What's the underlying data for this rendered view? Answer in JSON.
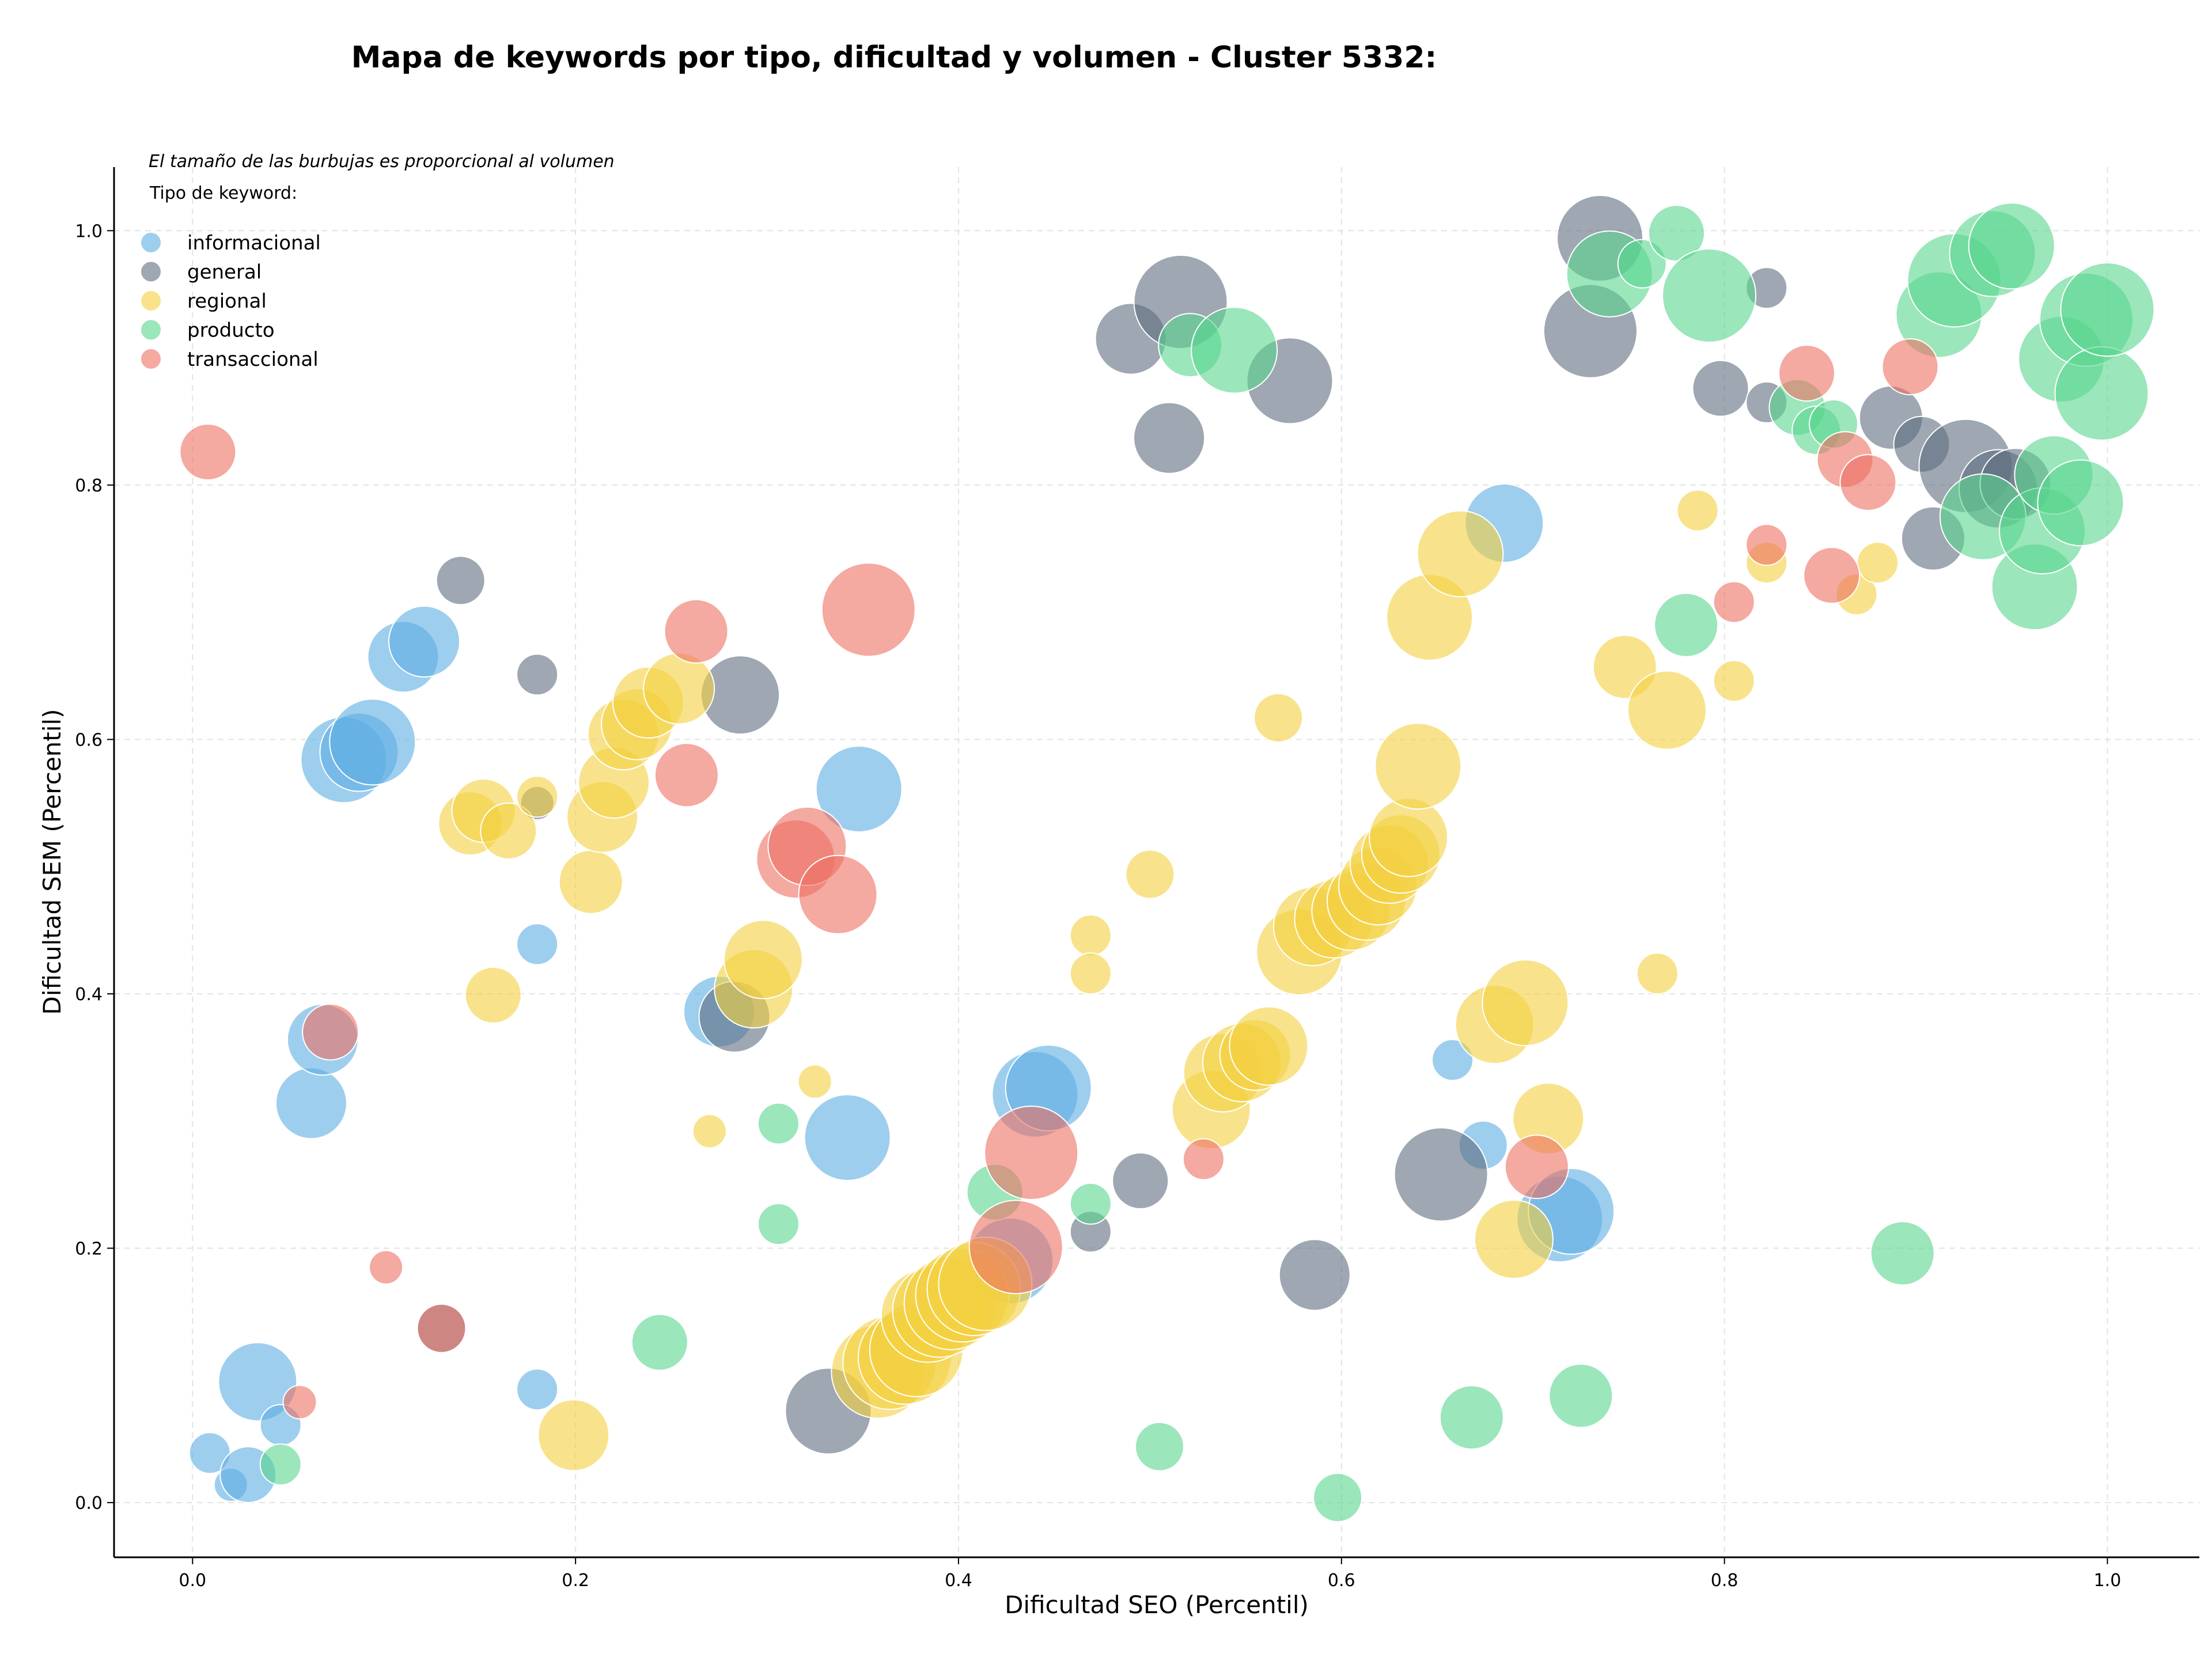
{
  "chart_data": {
    "type": "scatter",
    "title": "Mapa de keywords por tipo, dificultad y volumen - Cluster 5332:",
    "xlabel": "Dificultad SEO (Percentil)",
    "ylabel": "Dificultad SEM (Percentil)",
    "note": "El tamaño de las burbujas es proporcional al volumen",
    "legend_title": "Tipo de keyword:",
    "legend_position": "top-left",
    "grid": true,
    "xlim": [
      -0.041,
      1.048
    ],
    "ylim": [
      -0.043,
      1.05
    ],
    "xticks": [
      "0.0",
      "0.2",
      "0.4",
      "0.6",
      "0.8",
      "1.0"
    ],
    "yticks": [
      "0.0",
      "0.2",
      "0.4",
      "0.6",
      "0.8",
      "1.0"
    ],
    "series": [
      {
        "name": "informacional",
        "color": "#5DADE2",
        "points": [
          [
            0.009,
            0.039,
            3
          ],
          [
            0.02,
            0.014,
            2
          ],
          [
            0.029,
            0.022,
            5
          ],
          [
            0.034,
            0.095,
            8
          ],
          [
            0.046,
            0.061,
            3
          ],
          [
            0.062,
            0.314,
            7
          ],
          [
            0.068,
            0.364,
            7
          ],
          [
            0.079,
            0.584,
            9
          ],
          [
            0.087,
            0.59,
            8
          ],
          [
            0.094,
            0.598,
            9
          ],
          [
            0.11,
            0.665,
            7
          ],
          [
            0.121,
            0.677,
            7
          ],
          [
            0.18,
            0.439,
            3
          ],
          [
            0.18,
            0.089,
            3
          ],
          [
            0.275,
            0.386,
            7
          ],
          [
            0.342,
            0.287,
            9
          ],
          [
            0.348,
            0.561,
            9
          ],
          [
            0.427,
            0.19,
            9
          ],
          [
            0.44,
            0.321,
            9
          ],
          [
            0.447,
            0.326,
            9
          ],
          [
            0.658,
            0.348,
            3
          ],
          [
            0.674,
            0.281,
            4
          ],
          [
            0.685,
            0.77,
            8
          ],
          [
            0.714,
            0.223,
            9
          ],
          [
            0.72,
            0.229,
            9
          ]
        ]
      },
      {
        "name": "general",
        "color": "#5D6D7E",
        "points": [
          [
            0.14,
            0.725,
            4
          ],
          [
            0.13,
            0.137,
            4
          ],
          [
            0.18,
            0.651,
            3
          ],
          [
            0.18,
            0.55,
            2
          ],
          [
            0.283,
            0.382,
            7
          ],
          [
            0.286,
            0.635,
            8
          ],
          [
            0.332,
            0.072,
            9
          ],
          [
            0.469,
            0.213,
            3
          ],
          [
            0.495,
            0.253,
            5
          ],
          [
            0.49,
            0.915,
            7
          ],
          [
            0.51,
            0.837,
            7
          ],
          [
            0.516,
            0.944,
            10
          ],
          [
            0.573,
            0.882,
            9
          ],
          [
            0.586,
            0.179,
            7
          ],
          [
            0.652,
            0.258,
            10
          ],
          [
            0.73,
            0.921,
            10
          ],
          [
            0.735,
            0.994,
            9
          ],
          [
            0.798,
            0.876,
            5
          ],
          [
            0.822,
            0.955,
            3
          ],
          [
            0.822,
            0.865,
            3
          ],
          [
            0.887,
            0.853,
            6
          ],
          [
            0.903,
            0.832,
            5
          ],
          [
            0.909,
            0.758,
            6
          ],
          [
            0.926,
            0.815,
            10
          ],
          [
            0.943,
            0.797,
            8
          ],
          [
            0.952,
            0.801,
            7
          ]
        ]
      },
      {
        "name": "regional",
        "color": "#F4D03F",
        "points": [
          [
            0.145,
            0.534,
            6
          ],
          [
            0.152,
            0.544,
            6
          ],
          [
            0.157,
            0.399,
            5
          ],
          [
            0.165,
            0.528,
            5
          ],
          [
            0.18,
            0.555,
            3
          ],
          [
            0.199,
            0.053,
            7
          ],
          [
            0.208,
            0.488,
            6
          ],
          [
            0.214,
            0.539,
            7
          ],
          [
            0.22,
            0.566,
            7
          ],
          [
            0.225,
            0.604,
            7
          ],
          [
            0.232,
            0.612,
            7
          ],
          [
            0.238,
            0.629,
            7
          ],
          [
            0.254,
            0.64,
            7
          ],
          [
            0.27,
            0.292,
            2
          ],
          [
            0.293,
            0.404,
            8
          ],
          [
            0.298,
            0.427,
            8
          ],
          [
            0.325,
            0.331,
            2
          ],
          [
            0.358,
            0.103,
            10
          ],
          [
            0.364,
            0.11,
            10
          ],
          [
            0.372,
            0.114,
            10
          ],
          [
            0.378,
            0.12,
            10
          ],
          [
            0.384,
            0.147,
            10
          ],
          [
            0.39,
            0.151,
            10
          ],
          [
            0.396,
            0.157,
            10
          ],
          [
            0.402,
            0.163,
            10
          ],
          [
            0.408,
            0.168,
            10
          ],
          [
            0.414,
            0.172,
            10
          ],
          [
            0.469,
            0.446,
            3
          ],
          [
            0.469,
            0.416,
            3
          ],
          [
            0.5,
            0.494,
            4
          ],
          [
            0.532,
            0.309,
            8
          ],
          [
            0.538,
            0.338,
            8
          ],
          [
            0.548,
            0.346,
            8
          ],
          [
            0.555,
            0.352,
            7
          ],
          [
            0.562,
            0.359,
            8
          ],
          [
            0.567,
            0.617,
            4
          ],
          [
            0.578,
            0.433,
            9
          ],
          [
            0.585,
            0.453,
            8
          ],
          [
            0.596,
            0.459,
            8
          ],
          [
            0.605,
            0.465,
            8
          ],
          [
            0.613,
            0.473,
            8
          ],
          [
            0.619,
            0.485,
            8
          ],
          [
            0.625,
            0.502,
            8
          ],
          [
            0.631,
            0.51,
            8
          ],
          [
            0.635,
            0.523,
            8
          ],
          [
            0.64,
            0.579,
            9
          ],
          [
            0.646,
            0.696,
            9
          ],
          [
            0.662,
            0.746,
            9
          ],
          [
            0.68,
            0.376,
            8
          ],
          [
            0.69,
            0.207,
            8
          ],
          [
            0.696,
            0.393,
            9
          ],
          [
            0.708,
            0.302,
            7
          ],
          [
            0.748,
            0.657,
            6
          ],
          [
            0.765,
            0.416,
            3
          ],
          [
            0.77,
            0.623,
            8
          ],
          [
            0.786,
            0.78,
            3
          ],
          [
            0.805,
            0.646,
            3
          ],
          [
            0.822,
            0.739,
            3
          ],
          [
            0.869,
            0.714,
            3
          ],
          [
            0.88,
            0.739,
            3
          ]
        ]
      },
      {
        "name": "producto",
        "color": "#58D68D",
        "points": [
          [
            0.046,
            0.03,
            3
          ],
          [
            0.244,
            0.126,
            5
          ],
          [
            0.306,
            0.298,
            3
          ],
          [
            0.306,
            0.219,
            3
          ],
          [
            0.419,
            0.244,
            5
          ],
          [
            0.469,
            0.235,
            3
          ],
          [
            0.505,
            0.044,
            4
          ],
          [
            0.521,
            0.91,
            6
          ],
          [
            0.544,
            0.906,
            9
          ],
          [
            0.598,
            0.004,
            4
          ],
          [
            0.668,
            0.067,
            6
          ],
          [
            0.725,
            0.084,
            6
          ],
          [
            0.74,
            0.966,
            9
          ],
          [
            0.757,
            0.974,
            4
          ],
          [
            0.775,
            0.998,
            5
          ],
          [
            0.78,
            0.69,
            6
          ],
          [
            0.792,
            0.949,
            10
          ],
          [
            0.838,
            0.861,
            5
          ],
          [
            0.848,
            0.843,
            4
          ],
          [
            0.857,
            0.848,
            4
          ],
          [
            0.893,
            0.196,
            6
          ],
          [
            0.912,
            0.934,
            9
          ],
          [
            0.92,
            0.961,
            10
          ],
          [
            0.935,
            0.775,
            9
          ],
          [
            0.94,
            0.982,
            9
          ],
          [
            0.95,
            0.988,
            9
          ],
          [
            0.962,
            0.72,
            9
          ],
          [
            0.966,
            0.764,
            9
          ],
          [
            0.972,
            0.808,
            8
          ],
          [
            0.976,
            0.899,
            9
          ],
          [
            0.986,
            0.786,
            9
          ],
          [
            0.989,
            0.93,
            10
          ],
          [
            0.997,
            0.872,
            10
          ],
          [
            1.0,
            0.938,
            10
          ]
        ]
      },
      {
        "name": "transaccional",
        "color": "#EC7063",
        "points": [
          [
            0.008,
            0.826,
            5
          ],
          [
            0.056,
            0.079,
            2
          ],
          [
            0.072,
            0.37,
            5
          ],
          [
            0.101,
            0.185,
            2
          ],
          [
            0.13,
            0.137,
            4
          ],
          [
            0.258,
            0.572,
            6
          ],
          [
            0.263,
            0.685,
            6
          ],
          [
            0.315,
            0.506,
            8
          ],
          [
            0.321,
            0.516,
            8
          ],
          [
            0.337,
            0.478,
            8
          ],
          [
            0.353,
            0.702,
            10
          ],
          [
            0.43,
            0.201,
            10
          ],
          [
            0.438,
            0.275,
            10
          ],
          [
            0.528,
            0.27,
            3
          ],
          [
            0.702,
            0.264,
            6
          ],
          [
            0.805,
            0.708,
            3
          ],
          [
            0.822,
            0.753,
            3
          ],
          [
            0.843,
            0.888,
            5
          ],
          [
            0.856,
            0.729,
            5
          ],
          [
            0.863,
            0.82,
            5
          ],
          [
            0.875,
            0.802,
            5
          ],
          [
            0.897,
            0.893,
            5
          ]
        ]
      }
    ]
  }
}
